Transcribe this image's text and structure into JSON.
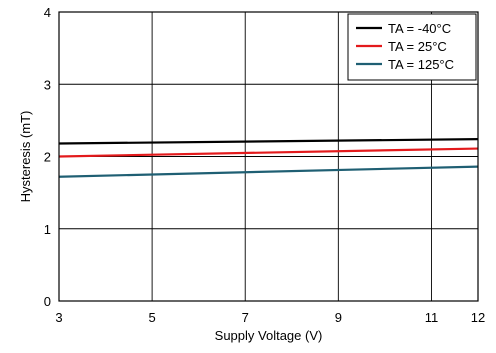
{
  "chart_data": {
    "type": "line",
    "xlabel": "Supply Voltage (V)",
    "ylabel": "Hysteresis (mT)",
    "xlim": [
      3,
      12
    ],
    "ylim": [
      0,
      4
    ],
    "xticks": [
      3,
      5,
      7,
      9,
      11,
      12
    ],
    "yticks": [
      0,
      1,
      2,
      3,
      4
    ],
    "grid": true,
    "legend_position": "top-right",
    "series": [
      {
        "name": "TA = -40°C",
        "color": "#000000",
        "x": [
          3,
          12
        ],
        "y": [
          2.18,
          2.24
        ]
      },
      {
        "name": "TA = 25°C",
        "color": "#e31a1c",
        "x": [
          3,
          12
        ],
        "y": [
          2.0,
          2.11
        ]
      },
      {
        "name": "TA = 125°C",
        "color": "#1f5f73",
        "x": [
          3,
          12
        ],
        "y": [
          1.72,
          1.86
        ]
      }
    ]
  }
}
